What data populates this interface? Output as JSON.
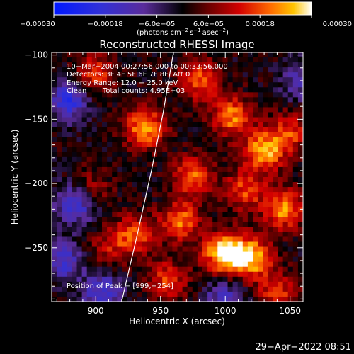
{
  "chart_data": {
    "type": "heatmap",
    "title": "Reconstructed RHESSI Image",
    "xlabel": "Heliocentric X (arcsec)",
    "ylabel": "Heliocentric Y (arcsec)",
    "xlim": [
      866,
      1060
    ],
    "ylim": [
      -292,
      -98
    ],
    "x_ticks": [
      {
        "value": 900,
        "label": "900"
      },
      {
        "value": 950,
        "label": "950"
      },
      {
        "value": 1000,
        "label": "1000"
      },
      {
        "value": 1050,
        "label": "1050"
      }
    ],
    "y_ticks": [
      {
        "value": -100,
        "label": "−100"
      },
      {
        "value": -150,
        "label": "−150"
      },
      {
        "value": -200,
        "label": "−200"
      },
      {
        "value": -250,
        "label": "−250"
      }
    ],
    "colorbar": {
      "min": -0.0003,
      "max": 0.0003,
      "label": "(photons cm",
      "ticks": [
        {
          "value": -0.0003,
          "label": "−0.00030"
        },
        {
          "value": -0.00018,
          "label": "−0.00018"
        },
        {
          "value": -6e-05,
          "label": "−6.0e−05"
        },
        {
          "value": 6e-05,
          "label": "6.0e−05"
        },
        {
          "value": 0.00018,
          "label": "0.00018"
        },
        {
          "value": 0.0003,
          "label": "0.00030"
        }
      ]
    },
    "annotations": {
      "time_range": "10−Mar−2004 00:27:56.000 to 00:33:56.000",
      "detectors": "Detectors: 3F 4F 5F 6F 7F 8F, Att 0",
      "energy_range": "Energy Range: 12.0 − 25.0 keV",
      "method": "Clean",
      "total_counts": "Total counts: 4.95E+03",
      "peak_position": "Position of Peak = [999,−254]"
    },
    "limb_curve": [
      [
        920,
        -292
      ],
      [
        932,
        -240
      ],
      [
        943,
        -190
      ],
      [
        952,
        -145
      ],
      [
        960,
        -98
      ]
    ],
    "hotspots": [
      {
        "x": 999,
        "y": -254,
        "value": 0.0003
      },
      {
        "x": 1020,
        "y": -258,
        "value": 0.00026
      },
      {
        "x": 1030,
        "y": -175,
        "value": 0.00025
      },
      {
        "x": 1045,
        "y": -220,
        "value": 0.00022
      },
      {
        "x": 938,
        "y": -157,
        "value": 0.00024
      },
      {
        "x": 965,
        "y": -230,
        "value": 0.0002
      },
      {
        "x": 1005,
        "y": -148,
        "value": 0.00021
      },
      {
        "x": 975,
        "y": -195,
        "value": 0.00019
      },
      {
        "x": 900,
        "y": -115,
        "value": 0.00016
      },
      {
        "x": 980,
        "y": -120,
        "value": 0.00018
      },
      {
        "x": 930,
        "y": -240,
        "value": 0.00017
      },
      {
        "x": 1015,
        "y": -205,
        "value": 0.00016
      },
      {
        "x": 955,
        "y": -275,
        "value": 0.00015
      },
      {
        "x": 1050,
        "y": -160,
        "value": 0.00015
      },
      {
        "x": 895,
        "y": -205,
        "value": 0.00012
      },
      {
        "x": 1040,
        "y": -285,
        "value": 0.00015
      },
      {
        "x": 910,
        "y": -250,
        "value": 0.0001
      },
      {
        "x": 880,
        "y": -135,
        "value": -0.0002
      },
      {
        "x": 885,
        "y": -215,
        "value": -0.00022
      },
      {
        "x": 905,
        "y": -285,
        "value": -0.00018
      },
      {
        "x": 1000,
        "y": -290,
        "value": -0.00015
      },
      {
        "x": 1058,
        "y": -120,
        "value": -0.00012
      },
      {
        "x": 875,
        "y": -260,
        "value": -0.00016
      }
    ]
  },
  "labels": {
    "photons_unit_a": "(photons cm",
    "photons_exp_a": "−2",
    "photons_unit_b": "s",
    "photons_exp_b": "−1",
    "photons_unit_c": "asec",
    "photons_exp_c": "−2",
    "photons_close": ")"
  },
  "timestamp": "29−Apr−2022 08:51",
  "colors": {
    "background": "#000000",
    "foreground": "#ffffff"
  }
}
